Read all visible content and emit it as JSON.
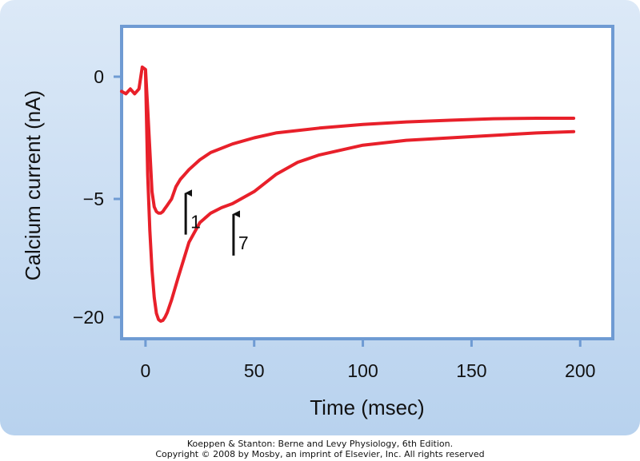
{
  "chart_data": {
    "type": "line",
    "xlabel": "Time (msec)",
    "ylabel": "Calcium current (nA)",
    "xlim": [
      -11,
      215
    ],
    "x_ticks": [
      0,
      50,
      100,
      150,
      200
    ],
    "y_ticks": [
      {
        "value": 0,
        "label": "0"
      },
      {
        "value": -5,
        "label": "−5"
      },
      {
        "value": -20,
        "label": "−20"
      }
    ],
    "series": [
      {
        "name": "1",
        "x": [
          -11,
          -9,
          -7,
          -5,
          -3,
          -1.5,
          0,
          1,
          2,
          3,
          4,
          5,
          6,
          7,
          8,
          9,
          10,
          12,
          14,
          16,
          18,
          20,
          25,
          30,
          40,
          50,
          60,
          80,
          100,
          120,
          140,
          160,
          180,
          197
        ],
        "y": [
          -0.6,
          -0.7,
          -0.5,
          -0.7,
          -0.5,
          0.4,
          0.3,
          -1.3,
          -3.0,
          -4.7,
          -6.0,
          -6.6,
          -6.8,
          -6.8,
          -6.6,
          -6.2,
          -5.8,
          -5.0,
          -4.5,
          -4.2,
          -4.0,
          -3.8,
          -3.4,
          -3.1,
          -2.75,
          -2.5,
          -2.3,
          -2.1,
          -1.95,
          -1.85,
          -1.78,
          -1.72,
          -1.7,
          -1.7
        ]
      },
      {
        "name": "7",
        "x": [
          0,
          1,
          2,
          3,
          4,
          5,
          6,
          7,
          8,
          9,
          10,
          12,
          15,
          20,
          25,
          30,
          35,
          40,
          50,
          60,
          70,
          80,
          100,
          120,
          150,
          180,
          197
        ],
        "y": [
          0.2,
          -4.0,
          -9.0,
          -14.0,
          -17.5,
          -19.5,
          -20.3,
          -20.5,
          -20.4,
          -20.0,
          -19.4,
          -17.8,
          -15.0,
          -10.5,
          -8.0,
          -6.8,
          -6.1,
          -5.6,
          -4.7,
          -4.0,
          -3.5,
          -3.2,
          -2.8,
          -2.6,
          -2.45,
          -2.3,
          -2.25
        ]
      }
    ],
    "annotations": [
      {
        "label": "1",
        "x": 18.5,
        "y": -4.4
      },
      {
        "label": "7",
        "x": 40.5,
        "y": -5.8
      }
    ],
    "colors": {
      "line": "#e8202a",
      "frame": "#6f9bd3",
      "panel_outer": "#aac8ea"
    }
  },
  "caption": {
    "line1": "Koeppen & Stanton: Berne and Levy Physiology, 6th Edition.",
    "line2": "Copyright © 2008 by Mosby, an imprint of Elsevier, Inc. All rights reserved"
  }
}
